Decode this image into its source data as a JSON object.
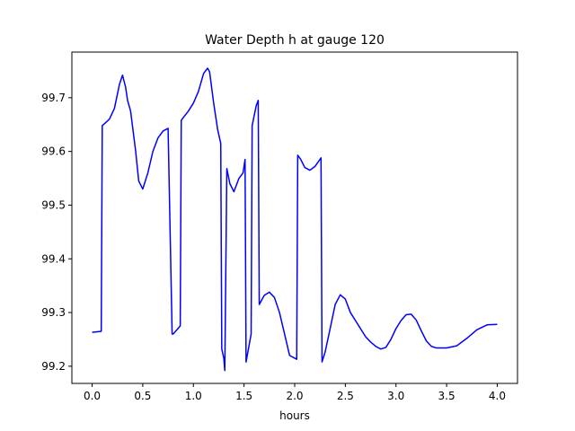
{
  "chart_data": {
    "type": "line",
    "title": "Water Depth h at gauge 120",
    "xlabel": "hours",
    "ylabel": "",
    "xlim": [
      -0.2,
      4.2
    ],
    "ylim": [
      99.168,
      99.785
    ],
    "grid": false,
    "xticks": [
      0.0,
      0.5,
      1.0,
      1.5,
      2.0,
      2.5,
      3.0,
      3.5,
      4.0
    ],
    "xtick_labels": [
      "0.0",
      "0.5",
      "1.0",
      "1.5",
      "2.0",
      "2.5",
      "3.0",
      "3.5",
      "4.0"
    ],
    "yticks": [
      99.2,
      99.3,
      99.4,
      99.5,
      99.6,
      99.7
    ],
    "ytick_labels": [
      "99.2",
      "99.3",
      "99.4",
      "99.5",
      "99.6",
      "99.7"
    ],
    "colors": {
      "series": "#0000ff",
      "axes": "#000000",
      "background": "#ffffff"
    },
    "series": [
      {
        "x": [
          0.0,
          0.09,
          0.1,
          0.13,
          0.17,
          0.22,
          0.27,
          0.3,
          0.33,
          0.35,
          0.38,
          0.43,
          0.46,
          0.5,
          0.55,
          0.6,
          0.65,
          0.7,
          0.75,
          0.79,
          0.8,
          0.87,
          0.88,
          0.9,
          0.95,
          1.0,
          1.05,
          1.1,
          1.14,
          1.16,
          1.2,
          1.24,
          1.27,
          1.28,
          1.3,
          1.31,
          1.33,
          1.36,
          1.4,
          1.45,
          1.49,
          1.51,
          1.52,
          1.57,
          1.58,
          1.62,
          1.64,
          1.65,
          1.7,
          1.75,
          1.8,
          1.85,
          1.9,
          1.95,
          2.02,
          2.03,
          2.06,
          2.1,
          2.15,
          2.2,
          2.26,
          2.27,
          2.3,
          2.35,
          2.4,
          2.45,
          2.5,
          2.55,
          2.6,
          2.65,
          2.7,
          2.75,
          2.8,
          2.85,
          2.9,
          2.95,
          3.0,
          3.05,
          3.1,
          3.15,
          3.2,
          3.25,
          3.3,
          3.35,
          3.4,
          3.45,
          3.5,
          3.6,
          3.7,
          3.8,
          3.9,
          4.0
        ],
        "y": [
          99.263,
          99.265,
          99.648,
          99.653,
          99.66,
          99.68,
          99.725,
          99.742,
          99.72,
          99.695,
          99.675,
          99.6,
          99.545,
          99.53,
          99.56,
          99.6,
          99.625,
          99.638,
          99.643,
          99.26,
          99.26,
          99.275,
          99.658,
          99.663,
          99.675,
          99.69,
          99.712,
          99.745,
          99.755,
          99.748,
          99.69,
          99.64,
          99.615,
          99.232,
          99.215,
          99.192,
          99.568,
          99.54,
          99.525,
          99.55,
          99.56,
          99.585,
          99.208,
          99.26,
          99.648,
          99.685,
          99.695,
          99.315,
          99.332,
          99.338,
          99.328,
          99.3,
          99.26,
          99.22,
          99.213,
          99.593,
          99.585,
          99.57,
          99.565,
          99.572,
          99.588,
          99.208,
          99.226,
          99.27,
          99.315,
          99.333,
          99.325,
          99.3,
          99.285,
          99.27,
          99.255,
          99.245,
          99.237,
          99.232,
          99.235,
          99.25,
          99.27,
          99.285,
          99.296,
          99.297,
          99.286,
          99.266,
          99.247,
          99.237,
          99.234,
          99.234,
          99.234,
          99.238,
          99.252,
          99.268,
          99.277,
          99.278
        ]
      }
    ]
  }
}
